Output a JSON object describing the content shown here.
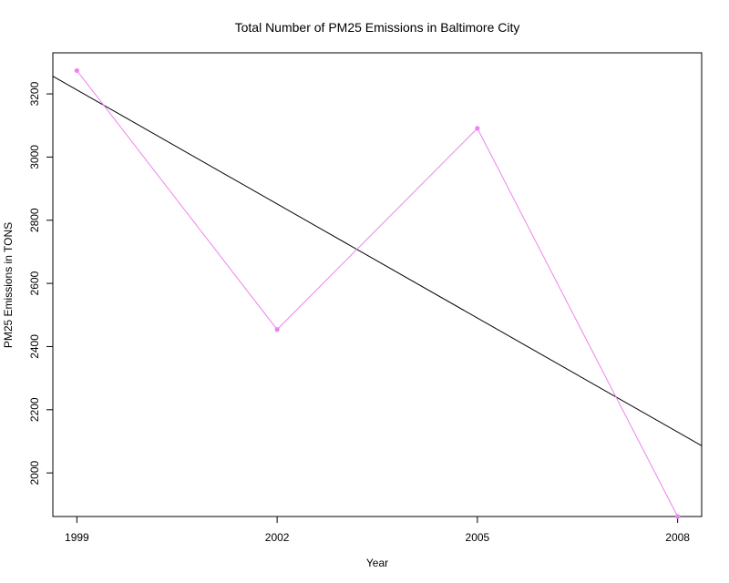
{
  "chart_data": {
    "type": "line",
    "title": "Total Number of PM25 Emissions in Baltimore City",
    "xlabel": "Year",
    "ylabel": "PM25 Emissions in TONS",
    "x": [
      1999,
      2002,
      2005,
      2008
    ],
    "x_ticks": [
      "1999",
      "2002",
      "2005",
      "2008"
    ],
    "y_ticks": [
      "2000",
      "2200",
      "2400",
      "2600",
      "2800",
      "3000",
      "3200"
    ],
    "xlim": [
      1998.64,
      2008.36
    ],
    "ylim": [
      1862,
      3330
    ],
    "grid": false,
    "series": [
      {
        "values": [
          3274,
          2454,
          3091,
          1862
        ],
        "color": "#ee82ee",
        "marker": "circle"
      }
    ],
    "trend_line": {
      "x": [
        1998.64,
        2008.36
      ],
      "y": [
        3256,
        2086
      ],
      "color": "#000000"
    }
  }
}
